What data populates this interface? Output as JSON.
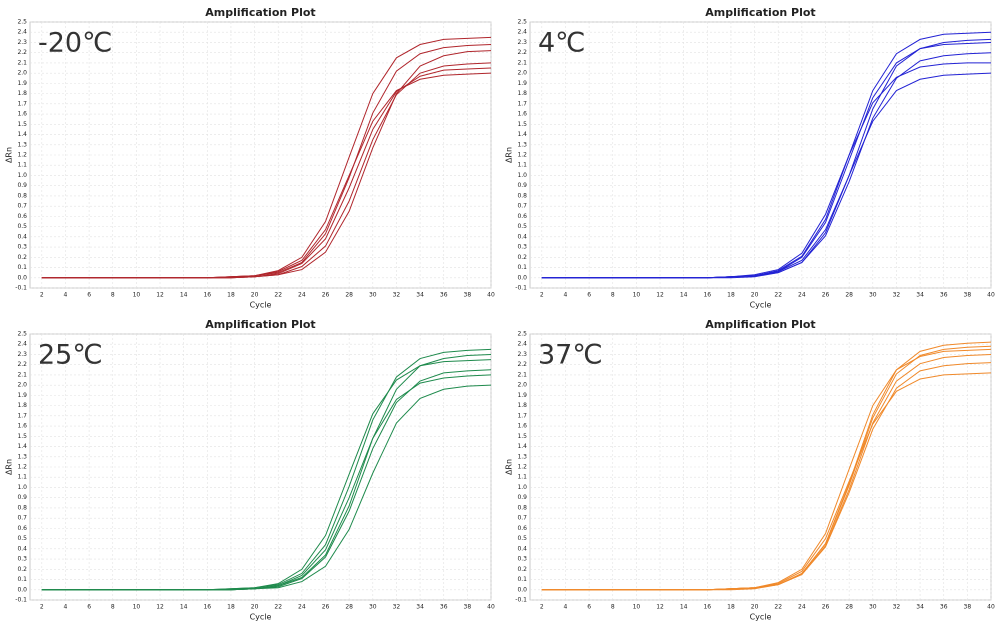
{
  "chart_data": [
    {
      "type": "line",
      "title": "Amplification Plot",
      "annotation": "-20℃",
      "xlabel": "Cycle",
      "ylabel": "ΔRn",
      "x": [
        2,
        4,
        6,
        8,
        10,
        12,
        14,
        16,
        18,
        20,
        22,
        24,
        26,
        28,
        30,
        32,
        34,
        36,
        38,
        40
      ],
      "series": [
        {
          "color": "#b0262c",
          "values": [
            0,
            0,
            0,
            0,
            0,
            0,
            0,
            0,
            0.01,
            0.02,
            0.07,
            0.2,
            0.55,
            1.18,
            1.8,
            2.15,
            2.28,
            2.33,
            2.34,
            2.35
          ]
        },
        {
          "color": "#b0262c",
          "values": [
            0,
            0,
            0,
            0,
            0,
            0,
            0,
            0,
            0.01,
            0.02,
            0.05,
            0.15,
            0.43,
            0.98,
            1.61,
            2.02,
            2.19,
            2.25,
            2.27,
            2.28
          ]
        },
        {
          "color": "#b0262c",
          "values": [
            0,
            0,
            0,
            0,
            0,
            0,
            0,
            0,
            0,
            0.01,
            0.03,
            0.11,
            0.31,
            0.75,
            1.35,
            1.79,
            2.0,
            2.07,
            2.09,
            2.1
          ]
        },
        {
          "color": "#b0262c",
          "values": [
            0,
            0,
            0,
            0,
            0,
            0,
            0,
            0,
            0.01,
            0.02,
            0.06,
            0.17,
            0.47,
            1.0,
            1.53,
            1.83,
            1.94,
            1.98,
            1.99,
            2.0
          ]
        },
        {
          "color": "#b0262c",
          "values": [
            0,
            0,
            0,
            0,
            0,
            0,
            0,
            0,
            0,
            0.01,
            0.03,
            0.08,
            0.25,
            0.65,
            1.27,
            1.8,
            2.07,
            2.17,
            2.21,
            2.22
          ]
        },
        {
          "color": "#b0262c",
          "values": [
            0,
            0,
            0,
            0,
            0,
            0,
            0,
            0,
            0,
            0.01,
            0.04,
            0.14,
            0.38,
            0.88,
            1.45,
            1.82,
            1.97,
            2.03,
            2.04,
            2.05
          ]
        }
      ],
      "xlim": [
        1,
        40
      ],
      "ylim": [
        -0.1,
        2.5
      ],
      "xticks": [
        2,
        4,
        6,
        8,
        10,
        12,
        14,
        16,
        18,
        20,
        22,
        24,
        26,
        28,
        30,
        32,
        34,
        36,
        38,
        40
      ],
      "yticks": [
        -0.1,
        {
          "value": 0,
          "label": "0.0"
        },
        0.1,
        0.2,
        0.3,
        0.4,
        0.5,
        0.6,
        0.7,
        0.8,
        0.9,
        {
          "value": 1,
          "label": "1.0"
        },
        1.1,
        1.2,
        1.3,
        1.4,
        1.5,
        1.6,
        1.7,
        1.8,
        1.9,
        {
          "value": 2,
          "label": "2.0"
        },
        2.1,
        2.2,
        2.3,
        2.4,
        2.5
      ],
      "grid": true
    },
    {
      "type": "line",
      "title": "Amplification Plot",
      "annotation": "4℃",
      "xlabel": "Cycle",
      "ylabel": "ΔRn",
      "x": [
        2,
        4,
        6,
        8,
        10,
        12,
        14,
        16,
        18,
        20,
        22,
        24,
        26,
        28,
        30,
        32,
        34,
        36,
        38,
        40
      ],
      "series": [
        {
          "color": "#2222d4",
          "values": [
            0,
            0,
            0,
            0,
            0,
            0,
            0,
            0,
            0.01,
            0.02,
            0.07,
            0.21,
            0.57,
            1.2,
            1.83,
            2.19,
            2.33,
            2.38,
            2.39,
            2.4
          ]
        },
        {
          "color": "#2222d4",
          "values": [
            0,
            0,
            0,
            0,
            0,
            0,
            0,
            0,
            0.01,
            0.02,
            0.05,
            0.15,
            0.44,
            1.0,
            1.65,
            2.07,
            2.24,
            2.3,
            2.32,
            2.33
          ]
        },
        {
          "color": "#2222d4",
          "values": [
            0,
            0,
            0,
            0,
            0,
            0,
            0,
            0,
            0.01,
            0.03,
            0.08,
            0.24,
            0.62,
            1.2,
            1.71,
            1.96,
            2.06,
            2.09,
            2.1,
            2.1
          ]
        },
        {
          "color": "#2222d4",
          "values": [
            0,
            0,
            0,
            0,
            0,
            0,
            0,
            0,
            0.01,
            0.02,
            0.06,
            0.17,
            0.47,
            1.0,
            1.53,
            1.83,
            1.94,
            1.98,
            1.99,
            2.0
          ]
        },
        {
          "color": "#2222d4",
          "values": [
            0,
            0,
            0,
            0,
            0,
            0,
            0,
            0,
            0.01,
            0.02,
            0.06,
            0.2,
            0.54,
            1.15,
            1.76,
            2.1,
            2.24,
            2.28,
            2.29,
            2.3
          ]
        },
        {
          "color": "#2222d4",
          "values": [
            0,
            0,
            0,
            0,
            0,
            0,
            0,
            0,
            0,
            0.01,
            0.05,
            0.15,
            0.41,
            0.94,
            1.56,
            1.95,
            2.12,
            2.17,
            2.19,
            2.2
          ]
        }
      ],
      "xlim": [
        1,
        40
      ],
      "ylim": [
        -0.1,
        2.5
      ],
      "xticks": [
        2,
        4,
        6,
        8,
        10,
        12,
        14,
        16,
        18,
        20,
        22,
        24,
        26,
        28,
        30,
        32,
        34,
        36,
        38,
        40
      ],
      "yticks": [
        -0.1,
        {
          "value": 0,
          "label": "0.0"
        },
        0.1,
        0.2,
        0.3,
        0.4,
        0.5,
        0.6,
        0.7,
        0.8,
        0.9,
        {
          "value": 1,
          "label": "1.0"
        },
        1.1,
        1.2,
        1.3,
        1.4,
        1.5,
        1.6,
        1.7,
        1.8,
        1.9,
        {
          "value": 2,
          "label": "2.0"
        },
        2.1,
        2.2,
        2.3,
        2.4,
        2.5
      ],
      "grid": true
    },
    {
      "type": "line",
      "title": "Amplification Plot",
      "annotation": "25℃",
      "xlabel": "Cycle",
      "ylabel": "ΔRn",
      "x": [
        2,
        4,
        6,
        8,
        10,
        12,
        14,
        16,
        18,
        20,
        22,
        24,
        26,
        28,
        30,
        32,
        34,
        36,
        38,
        40
      ],
      "series": [
        {
          "color": "#1e8a4c",
          "values": [
            0,
            0,
            0,
            0,
            0,
            0,
            0,
            0,
            0.01,
            0.02,
            0.05,
            0.16,
            0.44,
            1.01,
            1.66,
            2.08,
            2.26,
            2.32,
            2.34,
            2.35
          ]
        },
        {
          "color": "#1e8a4c",
          "values": [
            0,
            0,
            0,
            0,
            0,
            0,
            0,
            0,
            0,
            0.01,
            0.04,
            0.12,
            0.34,
            0.82,
            1.48,
            1.96,
            2.19,
            2.26,
            2.29,
            2.3
          ]
        },
        {
          "color": "#1e8a4c",
          "values": [
            0,
            0,
            0,
            0,
            0,
            0,
            0,
            0,
            0,
            0.01,
            0.04,
            0.14,
            0.39,
            0.9,
            1.48,
            1.86,
            2.02,
            2.07,
            2.09,
            2.1
          ]
        },
        {
          "color": "#1e8a4c",
          "values": [
            0,
            0,
            0,
            0,
            0,
            0,
            0,
            0,
            0,
            0.01,
            0.02,
            0.08,
            0.23,
            0.59,
            1.14,
            1.63,
            1.87,
            1.96,
            1.99,
            2.0
          ]
        },
        {
          "color": "#1e8a4c",
          "values": [
            0,
            0,
            0,
            0,
            0,
            0,
            0,
            0,
            0.01,
            0.02,
            0.06,
            0.2,
            0.53,
            1.13,
            1.72,
            2.05,
            2.19,
            2.23,
            2.24,
            2.25
          ]
        },
        {
          "color": "#1e8a4c",
          "values": [
            0,
            0,
            0,
            0,
            0,
            0,
            0,
            0,
            0,
            0.01,
            0.03,
            0.11,
            0.32,
            0.77,
            1.38,
            1.83,
            2.04,
            2.12,
            2.14,
            2.15
          ]
        }
      ],
      "xlim": [
        1,
        40
      ],
      "ylim": [
        -0.1,
        2.5
      ],
      "xticks": [
        2,
        4,
        6,
        8,
        10,
        12,
        14,
        16,
        18,
        20,
        22,
        24,
        26,
        28,
        30,
        32,
        34,
        36,
        38,
        40
      ],
      "yticks": [
        -0.1,
        {
          "value": 0,
          "label": "0.0"
        },
        0.1,
        0.2,
        0.3,
        0.4,
        0.5,
        0.6,
        0.7,
        0.8,
        0.9,
        {
          "value": 1,
          "label": "1.0"
        },
        1.1,
        1.2,
        1.3,
        1.4,
        1.5,
        1.6,
        1.7,
        1.8,
        1.9,
        {
          "value": 2,
          "label": "2.0"
        },
        2.1,
        2.2,
        2.3,
        2.4,
        2.5
      ],
      "grid": true
    },
    {
      "type": "line",
      "title": "Amplification Plot",
      "annotation": "37℃",
      "xlabel": "Cycle",
      "ylabel": "ΔRn",
      "x": [
        2,
        4,
        6,
        8,
        10,
        12,
        14,
        16,
        18,
        20,
        22,
        24,
        26,
        28,
        30,
        32,
        34,
        36,
        38,
        40
      ],
      "series": [
        {
          "color": "#f0892a",
          "values": [
            0,
            0,
            0,
            0,
            0,
            0,
            0,
            0,
            0.01,
            0.02,
            0.05,
            0.16,
            0.45,
            1.04,
            1.71,
            2.15,
            2.33,
            2.39,
            2.41,
            2.42
          ]
        },
        {
          "color": "#f0892a",
          "values": [
            0,
            0,
            0,
            0,
            0,
            0,
            0,
            0,
            0.01,
            0.02,
            0.05,
            0.16,
            0.45,
            1.02,
            1.68,
            2.11,
            2.29,
            2.35,
            2.37,
            2.38
          ]
        },
        {
          "color": "#f0892a",
          "values": [
            0,
            0,
            0,
            0,
            0,
            0,
            0,
            0,
            0.01,
            0.02,
            0.07,
            0.2,
            0.55,
            1.18,
            1.8,
            2.15,
            2.28,
            2.33,
            2.34,
            2.35
          ]
        },
        {
          "color": "#f0892a",
          "values": [
            0,
            0,
            0,
            0,
            0,
            0,
            0,
            0,
            0,
            0.01,
            0.05,
            0.15,
            0.42,
            0.95,
            1.57,
            1.97,
            2.14,
            2.19,
            2.21,
            2.22
          ]
        },
        {
          "color": "#f0892a",
          "values": [
            0,
            0,
            0,
            0,
            0,
            0,
            0,
            0,
            0.01,
            0.02,
            0.06,
            0.18,
            0.5,
            1.06,
            1.62,
            1.94,
            2.06,
            2.1,
            2.11,
            2.12
          ]
        },
        {
          "color": "#f0892a",
          "values": [
            0,
            0,
            0,
            0,
            0,
            0,
            0,
            0,
            0.01,
            0.02,
            0.05,
            0.15,
            0.43,
            0.98,
            1.63,
            2.04,
            2.21,
            2.27,
            2.29,
            2.3
          ]
        }
      ],
      "xlim": [
        1,
        40
      ],
      "ylim": [
        -0.1,
        2.5
      ],
      "xticks": [
        2,
        4,
        6,
        8,
        10,
        12,
        14,
        16,
        18,
        20,
        22,
        24,
        26,
        28,
        30,
        32,
        34,
        36,
        38,
        40
      ],
      "yticks": [
        -0.1,
        {
          "value": 0,
          "label": "0.0"
        },
        0.1,
        0.2,
        0.3,
        0.4,
        0.5,
        0.6,
        0.7,
        0.8,
        0.9,
        {
          "value": 1,
          "label": "1.0"
        },
        1.1,
        1.2,
        1.3,
        1.4,
        1.5,
        1.6,
        1.7,
        1.8,
        1.9,
        {
          "value": 2,
          "label": "2.0"
        },
        2.1,
        2.2,
        2.3,
        2.4,
        2.5
      ],
      "grid": true
    }
  ]
}
